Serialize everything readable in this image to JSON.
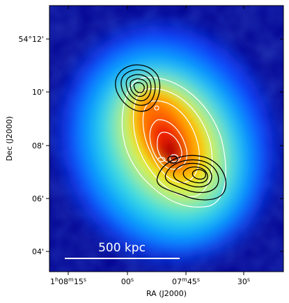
{
  "figure": {
    "xlabel": "RA (J2000)",
    "ylabel": "Dec (J2000)",
    "x_ticks": [
      {
        "label_html": "1<tspan baseline-shift=\"super\" font-size=\"8\">h</tspan>08<tspan baseline-shift=\"super\" font-size=\"8\">m</tspan>15<tspan baseline-shift=\"super\" font-size=\"8\">s</tspan>",
        "text": "1h08m15s"
      },
      {
        "text": "00s"
      },
      {
        "text": "07m45s"
      },
      {
        "text": "30s"
      }
    ],
    "y_ticks": [
      "54°12'",
      "10'",
      "08'",
      "06'",
      "04'"
    ],
    "scale_bar_label": "500 kpc",
    "colormap": "jet"
  }
}
